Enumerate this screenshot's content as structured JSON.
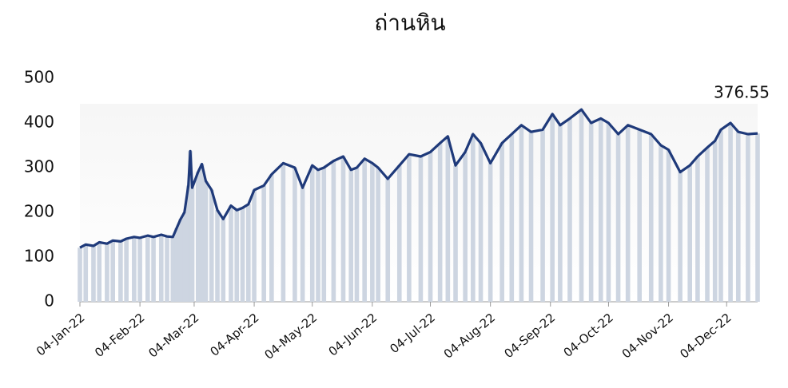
{
  "chart_data": {
    "type": "line",
    "title": "ถ่านหิน",
    "x": [
      "2022-01-04",
      "2022-01-07",
      "2022-01-11",
      "2022-01-14",
      "2022-01-18",
      "2022-01-21",
      "2022-01-25",
      "2022-01-28",
      "2022-02-01",
      "2022-02-04",
      "2022-02-08",
      "2022-02-11",
      "2022-02-15",
      "2022-02-18",
      "2022-02-21",
      "2022-02-23",
      "2022-02-25",
      "2022-02-27",
      "2022-03-01",
      "2022-03-02",
      "2022-03-03",
      "2022-03-06",
      "2022-03-08",
      "2022-03-10",
      "2022-03-13",
      "2022-03-16",
      "2022-03-19",
      "2022-03-23",
      "2022-03-26",
      "2022-03-29",
      "2022-04-01",
      "2022-04-04",
      "2022-04-09",
      "2022-04-13",
      "2022-04-19",
      "2022-04-25",
      "2022-04-29",
      "2022-05-04",
      "2022-05-07",
      "2022-05-10",
      "2022-05-15",
      "2022-05-20",
      "2022-05-24",
      "2022-05-27",
      "2022-05-31",
      "2022-06-04",
      "2022-06-07",
      "2022-06-12",
      "2022-06-18",
      "2022-06-23",
      "2022-06-29",
      "2022-07-04",
      "2022-07-09",
      "2022-07-13",
      "2022-07-17",
      "2022-07-22",
      "2022-07-26",
      "2022-07-30",
      "2022-08-04",
      "2022-08-10",
      "2022-08-15",
      "2022-08-20",
      "2022-08-25",
      "2022-08-31",
      "2022-09-05",
      "2022-09-09",
      "2022-09-14",
      "2022-09-20",
      "2022-09-25",
      "2022-09-30",
      "2022-10-04",
      "2022-10-09",
      "2022-10-14",
      "2022-10-20",
      "2022-10-26",
      "2022-10-31",
      "2022-11-04",
      "2022-11-10",
      "2022-11-15",
      "2022-11-19",
      "2022-11-24",
      "2022-11-28",
      "2022-12-01",
      "2022-12-06",
      "2022-12-10",
      "2022-12-15",
      "2022-12-20"
    ],
    "series": [
      {
        "name": "ถ่านหิน",
        "color": "#1f3a7a",
        "bar_color": "#cdd5e1",
        "values": [
          121,
          128,
          125,
          133,
          130,
          137,
          135,
          141,
          145,
          143,
          148,
          145,
          150,
          146,
          145,
          165,
          185,
          200,
          260,
          337,
          255,
          290,
          308,
          270,
          250,
          205,
          185,
          215,
          205,
          210,
          218,
          250,
          260,
          285,
          310,
          300,
          255,
          305,
          295,
          300,
          315,
          325,
          295,
          300,
          320,
          310,
          300,
          275,
          305,
          330,
          325,
          335,
          355,
          370,
          305,
          335,
          375,
          355,
          310,
          355,
          375,
          395,
          380,
          385,
          420,
          395,
          410,
          430,
          400,
          410,
          400,
          375,
          395,
          385,
          375,
          350,
          340,
          290,
          305,
          325,
          345,
          360,
          385,
          400,
          380,
          375,
          376.55
        ]
      }
    ],
    "xlim": [
      "2022-01-04",
      "2022-12-20"
    ],
    "xticks": [
      {
        "value": "2022-01-04",
        "label": "04-Jan-22"
      },
      {
        "value": "2022-02-04",
        "label": "04-Feb-22"
      },
      {
        "value": "2022-03-04",
        "label": "04-Mar-22"
      },
      {
        "value": "2022-04-04",
        "label": "04-Apr-22"
      },
      {
        "value": "2022-05-04",
        "label": "04-May-22"
      },
      {
        "value": "2022-06-04",
        "label": "04-Jun-22"
      },
      {
        "value": "2022-07-04",
        "label": "04-Jul-22"
      },
      {
        "value": "2022-08-04",
        "label": "04-Aug-22"
      },
      {
        "value": "2022-09-04",
        "label": "04-Sep-22"
      },
      {
        "value": "2022-10-04",
        "label": "04-Oct-22"
      },
      {
        "value": "2022-11-04",
        "label": "04-Nov-22"
      },
      {
        "value": "2022-12-04",
        "label": "04-Dec-22"
      }
    ],
    "ylim": [
      0,
      500
    ],
    "yticks": [
      0,
      100,
      200,
      300,
      400,
      500
    ]
  }
}
